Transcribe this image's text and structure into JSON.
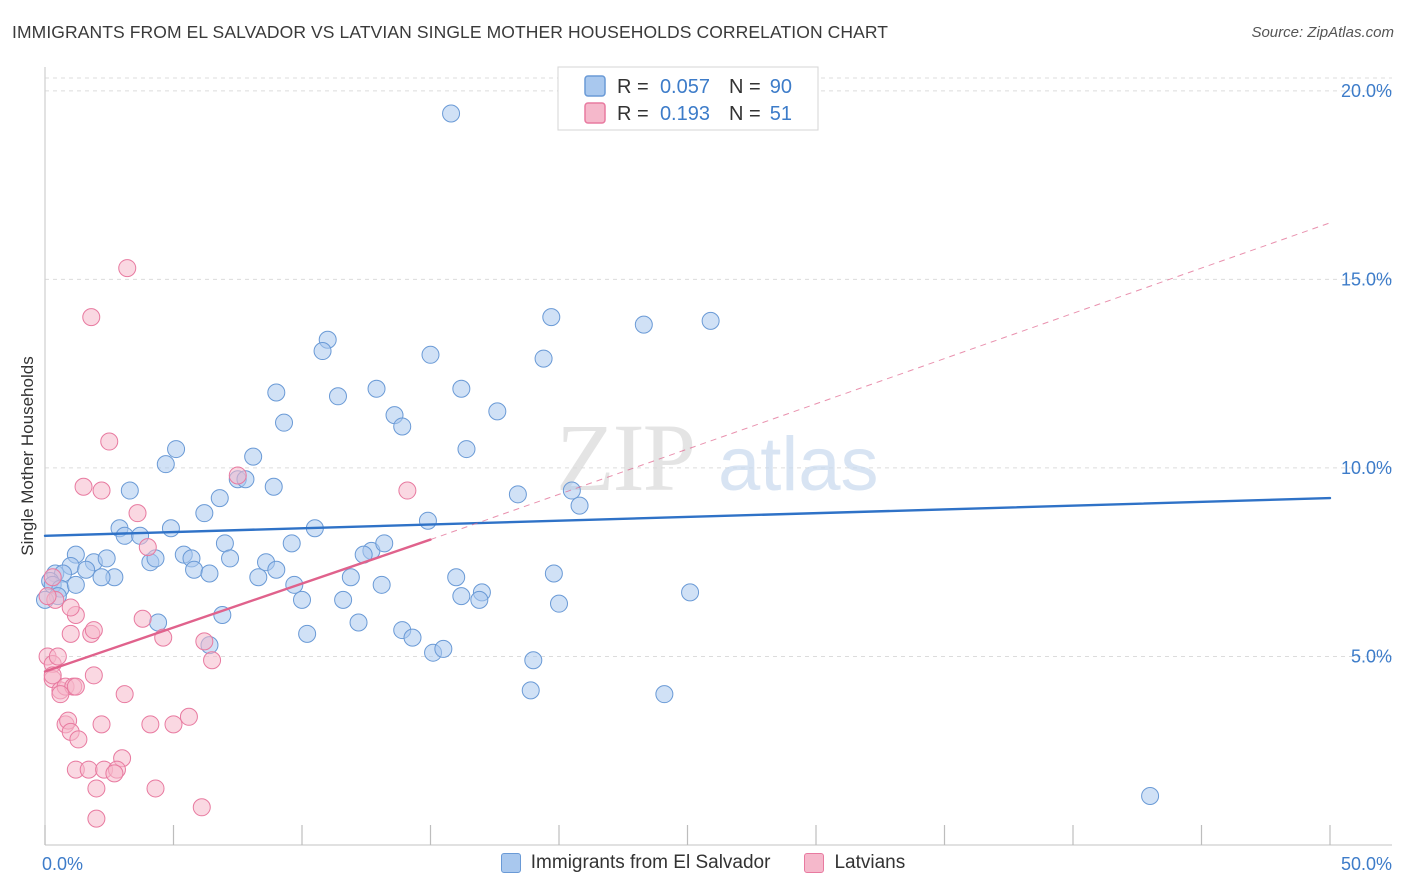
{
  "title": "IMMIGRANTS FROM EL SALVADOR VS LATVIAN SINGLE MOTHER HOUSEHOLDS CORRELATION CHART",
  "source": "Source: ZipAtlas.com",
  "watermark": {
    "zip": "ZIP",
    "atlas": "atlas"
  },
  "colors": {
    "blue_fill": "#a9c8ee",
    "blue_stroke": "#6a9ad6",
    "blue_line": "#2f72c7",
    "pink_fill": "#f5b8cb",
    "pink_stroke": "#e87aa0",
    "pink_line": "#e0628c",
    "value_text": "#3d7cc9"
  },
  "legend": {
    "rows": [
      {
        "r_label": "R =",
        "r_value": "0.057",
        "n_label": "N =",
        "n_value": "90",
        "series": "blue"
      },
      {
        "r_label": "R =",
        "r_value": "0.193",
        "n_label": "N =",
        "n_value": "51",
        "series": "pink"
      }
    ]
  },
  "bottom_legend": [
    "Immigrants from El Salvador",
    "Latvians"
  ],
  "chart_data": {
    "type": "scatter",
    "title": "IMMIGRANTS FROM EL SALVADOR VS LATVIAN SINGLE MOTHER HOUSEHOLDS CORRELATION CHART",
    "xlabel": "",
    "ylabel": "Single Mother Households",
    "xlim": [
      0,
      50
    ],
    "ylim": [
      0,
      20.5
    ],
    "x_tick_labels": [
      {
        "value": 0,
        "label": "0.0%"
      },
      {
        "value": 50,
        "label": "50.0%"
      }
    ],
    "y_ticks": [
      {
        "value": 5,
        "label": "5.0%"
      },
      {
        "value": 10,
        "label": "10.0%"
      },
      {
        "value": 15,
        "label": "15.0%"
      },
      {
        "value": 20,
        "label": "20.0%"
      }
    ],
    "x_minor_ticks": [
      0,
      5,
      10,
      15,
      20,
      25,
      30,
      35,
      40,
      45,
      50
    ],
    "grid": "horizontal dashed",
    "legend_position": "top-center",
    "series": [
      {
        "name": "Immigrants from El Salvador",
        "color": "blue",
        "trend": {
          "x": [
            0,
            50
          ],
          "y": [
            8.2,
            9.2
          ],
          "style": "solid"
        },
        "points": [
          [
            15.8,
            19.4
          ],
          [
            11.0,
            13.4
          ],
          [
            10.8,
            13.1
          ],
          [
            15.0,
            13.0
          ],
          [
            19.7,
            14.0
          ],
          [
            23.3,
            13.8
          ],
          [
            25.9,
            13.9
          ],
          [
            19.4,
            12.9
          ],
          [
            9.0,
            12.0
          ],
          [
            11.4,
            11.9
          ],
          [
            12.9,
            12.1
          ],
          [
            16.2,
            12.1
          ],
          [
            17.6,
            11.5
          ],
          [
            9.3,
            11.2
          ],
          [
            13.6,
            11.4
          ],
          [
            13.9,
            11.1
          ],
          [
            5.1,
            10.5
          ],
          [
            16.4,
            10.5
          ],
          [
            4.7,
            10.1
          ],
          [
            8.1,
            10.3
          ],
          [
            7.5,
            9.7
          ],
          [
            7.8,
            9.7
          ],
          [
            3.3,
            9.4
          ],
          [
            8.9,
            9.5
          ],
          [
            6.8,
            9.2
          ],
          [
            18.4,
            9.3
          ],
          [
            20.5,
            9.4
          ],
          [
            20.8,
            9.0
          ],
          [
            6.2,
            8.8
          ],
          [
            14.9,
            8.6
          ],
          [
            2.9,
            8.4
          ],
          [
            3.1,
            8.2
          ],
          [
            3.7,
            8.2
          ],
          [
            4.9,
            8.4
          ],
          [
            10.5,
            8.4
          ],
          [
            7.0,
            8.0
          ],
          [
            9.6,
            8.0
          ],
          [
            12.7,
            7.8
          ],
          [
            13.2,
            8.0
          ],
          [
            12.4,
            7.7
          ],
          [
            1.2,
            7.7
          ],
          [
            1.9,
            7.5
          ],
          [
            2.4,
            7.6
          ],
          [
            4.1,
            7.5
          ],
          [
            4.3,
            7.6
          ],
          [
            5.4,
            7.7
          ],
          [
            5.7,
            7.6
          ],
          [
            7.2,
            7.6
          ],
          [
            8.6,
            7.5
          ],
          [
            1.0,
            7.4
          ],
          [
            0.4,
            7.2
          ],
          [
            0.7,
            7.2
          ],
          [
            1.6,
            7.3
          ],
          [
            2.7,
            7.1
          ],
          [
            2.2,
            7.1
          ],
          [
            5.8,
            7.3
          ],
          [
            6.4,
            7.2
          ],
          [
            8.3,
            7.1
          ],
          [
            9.0,
            7.3
          ],
          [
            11.9,
            7.1
          ],
          [
            16.0,
            7.1
          ],
          [
            19.8,
            7.2
          ],
          [
            0.2,
            7.0
          ],
          [
            0.3,
            6.9
          ],
          [
            0.6,
            6.8
          ],
          [
            1.2,
            6.9
          ],
          [
            9.7,
            6.9
          ],
          [
            13.1,
            6.9
          ],
          [
            17.0,
            6.7
          ],
          [
            16.9,
            6.5
          ],
          [
            16.2,
            6.6
          ],
          [
            25.1,
            6.7
          ],
          [
            10.0,
            6.5
          ],
          [
            11.6,
            6.5
          ],
          [
            0.5,
            6.6
          ],
          [
            0.0,
            6.5
          ],
          [
            6.9,
            6.1
          ],
          [
            4.4,
            5.9
          ],
          [
            12.2,
            5.9
          ],
          [
            13.9,
            5.7
          ],
          [
            10.2,
            5.6
          ],
          [
            14.3,
            5.5
          ],
          [
            6.4,
            5.3
          ],
          [
            15.1,
            5.1
          ],
          [
            15.5,
            5.2
          ],
          [
            19.0,
            4.9
          ],
          [
            18.9,
            4.1
          ],
          [
            24.1,
            4.0
          ],
          [
            43.0,
            1.3
          ],
          [
            20.0,
            6.4
          ]
        ]
      },
      {
        "name": "Latvians",
        "color": "pink",
        "trend": {
          "x": [
            0,
            15
          ],
          "y": [
            4.6,
            8.1
          ],
          "style": "solid",
          "extension": {
            "x": [
              15,
              50
            ],
            "y": [
              8.1,
              16.5
            ],
            "style": "dashed"
          }
        },
        "points": [
          [
            3.2,
            15.3
          ],
          [
            1.8,
            14.0
          ],
          [
            2.5,
            10.7
          ],
          [
            7.5,
            9.8
          ],
          [
            1.5,
            9.5
          ],
          [
            2.2,
            9.4
          ],
          [
            14.1,
            9.4
          ],
          [
            3.6,
            8.8
          ],
          [
            4.0,
            7.9
          ],
          [
            0.3,
            7.1
          ],
          [
            0.4,
            6.5
          ],
          [
            1.2,
            6.1
          ],
          [
            1.0,
            6.3
          ],
          [
            3.8,
            6.0
          ],
          [
            1.0,
            5.6
          ],
          [
            1.8,
            5.6
          ],
          [
            1.9,
            5.7
          ],
          [
            4.6,
            5.5
          ],
          [
            6.2,
            5.4
          ],
          [
            0.1,
            5.0
          ],
          [
            0.3,
            4.8
          ],
          [
            0.5,
            5.0
          ],
          [
            6.5,
            4.9
          ],
          [
            0.3,
            4.4
          ],
          [
            0.3,
            4.5
          ],
          [
            1.9,
            4.5
          ],
          [
            0.6,
            4.1
          ],
          [
            0.8,
            4.2
          ],
          [
            1.1,
            4.2
          ],
          [
            1.2,
            4.2
          ],
          [
            0.6,
            4.0
          ],
          [
            3.1,
            4.0
          ],
          [
            0.8,
            3.2
          ],
          [
            0.9,
            3.3
          ],
          [
            2.2,
            3.2
          ],
          [
            4.1,
            3.2
          ],
          [
            5.0,
            3.2
          ],
          [
            5.6,
            3.4
          ],
          [
            1.0,
            3.0
          ],
          [
            1.3,
            2.8
          ],
          [
            3.0,
            2.3
          ],
          [
            1.2,
            2.0
          ],
          [
            1.7,
            2.0
          ],
          [
            2.3,
            2.0
          ],
          [
            2.8,
            2.0
          ],
          [
            2.7,
            1.9
          ],
          [
            2.0,
            1.5
          ],
          [
            4.3,
            1.5
          ],
          [
            6.1,
            1.0
          ],
          [
            2.0,
            0.7
          ],
          [
            0.1,
            6.6
          ]
        ]
      }
    ]
  }
}
